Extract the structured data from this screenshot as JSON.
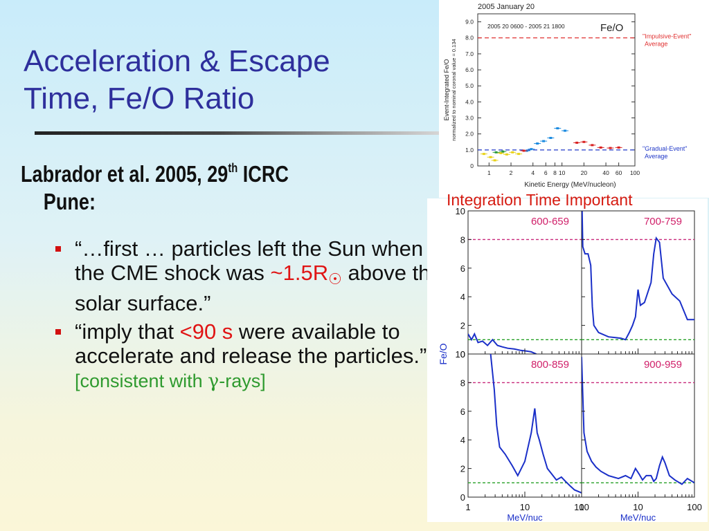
{
  "slide": {
    "title_line1": "Acceleration & Escape",
    "title_line2": "Time, Fe/O Ratio",
    "ref_main": "Labrador et al. 2005, 29",
    "ref_sup": "th",
    "ref_tail": " ICRC",
    "ref_line2": "Pune:",
    "bullet1": {
      "a": "“…first … particles left the Sun when the CME shock was ",
      "red": "~1.5R",
      "sun": "☉",
      "b": " above the solar surface.”"
    },
    "bullet2": {
      "a": "“imply that ",
      "red": "<90 s",
      "b": " were available to accelerate and release the particles.”",
      "note_a": "[consistent with ",
      "note_gamma": "γ",
      "note_b": "-rays]"
    },
    "figure2_caption": "Integration Time Important"
  },
  "chart_data": [
    {
      "type": "scatter",
      "title": "2005 January 20",
      "subtitle": "2005 20 0600 - 2005 21 1800",
      "panel_label": "Fe/O",
      "xlabel": "Kinetic Energy (MeV/nucleon)",
      "ylabel": "Event-Integrated Fe/O",
      "ylabel2": "normalized to nominal coronal value = 0.134",
      "xscale": "log",
      "xlim": [
        0.7,
        100
      ],
      "ylim": [
        0,
        9.5
      ],
      "xticks": [
        "1",
        "2",
        "4",
        "6",
        "8",
        "10",
        "20",
        "40",
        "60",
        "100"
      ],
      "yticks": [
        "0",
        "1.0",
        "2.0",
        "3.0",
        "4.0",
        "5.0",
        "6.0",
        "7.0",
        "8.0",
        "9.0"
      ],
      "reference_lines": [
        {
          "y": 8.0,
          "label1": "\"Impulsive-Event\"",
          "label2": "Average",
          "color": "#e03030"
        },
        {
          "y": 1.0,
          "label1": "\"Gradual-Event\"",
          "label2": "Average",
          "color": "#2038c8"
        }
      ],
      "series": [
        {
          "color": "#e8d21a",
          "points": [
            [
              0.85,
              0.75
            ],
            [
              1.05,
              0.55
            ],
            [
              1.2,
              0.35
            ],
            [
              1.45,
              0.8
            ],
            [
              1.75,
              0.72
            ],
            [
              2.1,
              0.85
            ],
            [
              2.55,
              0.75
            ]
          ]
        },
        {
          "color": "#2a9a3a",
          "points": [
            [
              1.25,
              0.85
            ],
            [
              1.55,
              0.9
            ]
          ]
        },
        {
          "color": "#1a8ae0",
          "points": [
            [
              3.3,
              0.95
            ],
            [
              3.8,
              1.05
            ],
            [
              4.6,
              1.4
            ],
            [
              5.6,
              1.55
            ],
            [
              7.0,
              1.75
            ],
            [
              8.7,
              2.35
            ],
            [
              11.0,
              2.2
            ]
          ]
        },
        {
          "color": "#d82020",
          "points": [
            [
              3.0,
              0.95
            ],
            [
              16.0,
              1.45
            ],
            [
              20.0,
              1.5
            ],
            [
              26.0,
              1.3
            ],
            [
              34.0,
              1.15
            ],
            [
              46.0,
              1.12
            ],
            [
              60.0,
              1.15
            ]
          ]
        }
      ]
    },
    {
      "type": "line",
      "ylabel": "Fe/O",
      "xlabel": "MeV/nuc",
      "xscale": "log",
      "xlim": [
        1,
        100
      ],
      "ylim": [
        0,
        10
      ],
      "yticks": [
        "0",
        "2",
        "4",
        "6",
        "8",
        "10"
      ],
      "xticks": [
        "1",
        "10",
        "100"
      ],
      "reference_lines": [
        {
          "y": 8,
          "color": "#c8287a"
        },
        {
          "y": 1,
          "color": "#26a026"
        }
      ],
      "series": [
        {
          "name": "600-659",
          "points": [
            [
              1.0,
              1.4
            ],
            [
              1.15,
              1.0
            ],
            [
              1.3,
              1.4
            ],
            [
              1.5,
              0.8
            ],
            [
              1.8,
              0.9
            ],
            [
              2.2,
              0.6
            ],
            [
              2.7,
              1.0
            ],
            [
              3.3,
              0.6
            ],
            [
              4.0,
              0.5
            ],
            [
              5.0,
              0.4
            ],
            [
              6.5,
              0.35
            ],
            [
              8.5,
              0.25
            ],
            [
              11.0,
              0.2
            ],
            [
              13.0,
              0.15
            ],
            [
              16.0,
              0.0
            ]
          ]
        },
        {
          "name": "700-759",
          "points": [
            [
              1.0,
              12.0
            ],
            [
              1.05,
              7.5
            ],
            [
              1.15,
              7.0
            ],
            [
              1.3,
              7.0
            ],
            [
              1.45,
              6.2
            ],
            [
              1.55,
              3.3
            ],
            [
              1.65,
              2.0
            ],
            [
              2.0,
              1.5
            ],
            [
              3.0,
              1.2
            ],
            [
              5.0,
              1.1
            ],
            [
              6.0,
              1.0
            ],
            [
              7.0,
              1.5
            ],
            [
              8.0,
              2.0
            ],
            [
              9.0,
              2.6
            ],
            [
              10.0,
              4.5
            ],
            [
              11.0,
              3.4
            ],
            [
              13.0,
              3.6
            ],
            [
              17.0,
              5.0
            ],
            [
              19.0,
              7.0
            ],
            [
              21.0,
              8.1
            ],
            [
              24.0,
              7.8
            ],
            [
              28.0,
              5.3
            ],
            [
              40.0,
              4.2
            ],
            [
              55.0,
              3.7
            ],
            [
              75.0,
              2.4
            ],
            [
              100.0,
              2.4
            ]
          ]
        },
        {
          "name": "800-859",
          "points": [
            [
              2.5,
              10.0
            ],
            [
              2.9,
              7.5
            ],
            [
              3.2,
              5.0
            ],
            [
              3.6,
              3.5
            ],
            [
              4.5,
              3.0
            ],
            [
              6.0,
              2.2
            ],
            [
              7.5,
              1.5
            ],
            [
              10.0,
              2.5
            ],
            [
              13.0,
              4.5
            ],
            [
              15.0,
              6.2
            ],
            [
              16.5,
              4.5
            ],
            [
              18.0,
              4.0
            ],
            [
              21.0,
              3.0
            ],
            [
              25.0,
              2.0
            ],
            [
              30.0,
              1.6
            ],
            [
              36.0,
              1.2
            ],
            [
              44.0,
              1.4
            ],
            [
              52.0,
              1.1
            ],
            [
              62.0,
              0.8
            ],
            [
              75.0,
              0.5
            ],
            [
              100.0,
              0.3
            ]
          ]
        },
        {
          "name": "900-959",
          "points": [
            [
              1.0,
              9.8
            ],
            [
              1.1,
              4.5
            ],
            [
              1.25,
              3.2
            ],
            [
              1.5,
              2.5
            ],
            [
              1.8,
              2.1
            ],
            [
              2.2,
              1.8
            ],
            [
              3.0,
              1.5
            ],
            [
              4.5,
              1.3
            ],
            [
              6.0,
              1.5
            ],
            [
              7.5,
              1.3
            ],
            [
              9.0,
              2.0
            ],
            [
              10.5,
              1.6
            ],
            [
              12.0,
              1.2
            ],
            [
              14.0,
              1.5
            ],
            [
              17.0,
              1.5
            ],
            [
              19.0,
              1.1
            ],
            [
              21.0,
              1.3
            ],
            [
              24.0,
              2.2
            ],
            [
              27.0,
              2.8
            ],
            [
              30.0,
              2.4
            ],
            [
              36.0,
              1.5
            ],
            [
              45.0,
              1.2
            ],
            [
              60.0,
              0.9
            ],
            [
              75.0,
              1.3
            ],
            [
              100.0,
              1.0
            ]
          ]
        }
      ]
    }
  ]
}
